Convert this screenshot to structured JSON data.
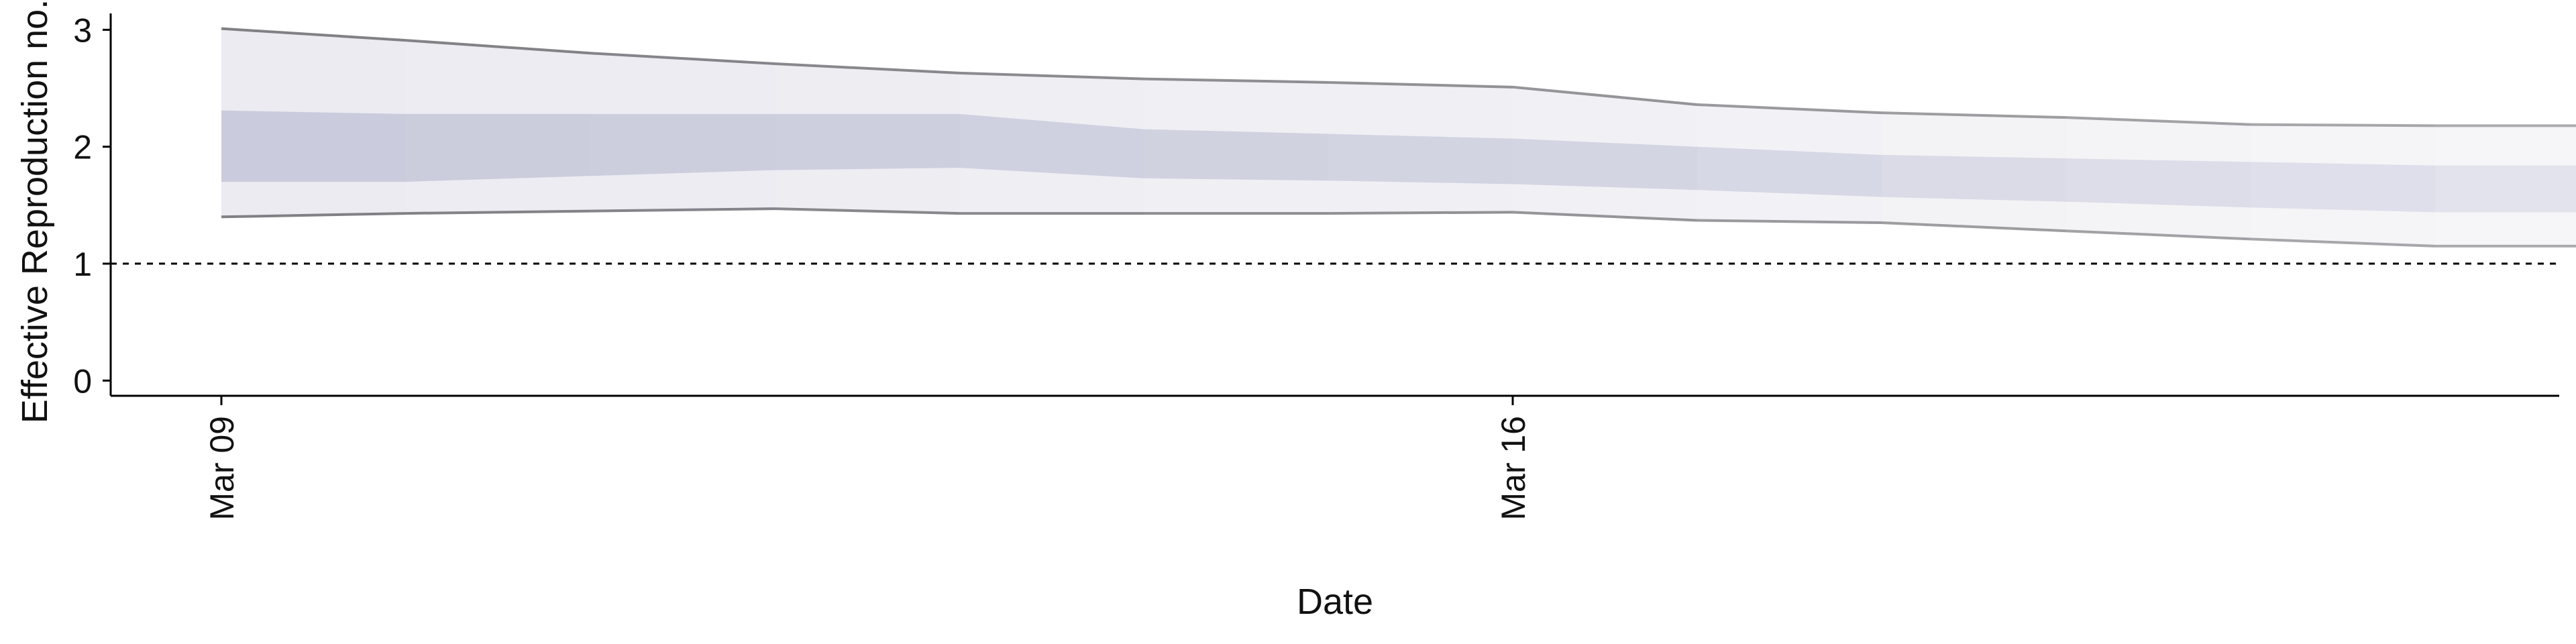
{
  "chart_data": {
    "type": "area",
    "title": "",
    "xlabel": "Date",
    "ylabel": "Effective Reproduction no.",
    "x": [
      "Mar 09",
      "Mar 10",
      "Mar 11",
      "Mar 12",
      "Mar 13",
      "Mar 14",
      "Mar 15",
      "Mar 16",
      "Mar 17",
      "Mar 18",
      "Mar 19",
      "Mar 20",
      "Mar 21",
      "Mar 22"
    ],
    "x_tick_labels": [
      "Mar 09",
      "Mar 16"
    ],
    "y_ticks": [
      0,
      1,
      2,
      3
    ],
    "ylim": [
      -0.13,
      3.14
    ],
    "reference_line": {
      "y": 1,
      "style": "dashed"
    },
    "grid": false,
    "legend": "none",
    "series": [
      {
        "lower_90": [
          1.4,
          1.43,
          1.45,
          1.47,
          1.43,
          1.43,
          1.43,
          1.44,
          1.37,
          1.35,
          1.28,
          1.21,
          1.15,
          1.15
        ]
      },
      {
        "upper_90": [
          3.01,
          2.91,
          2.8,
          2.71,
          2.63,
          2.58,
          2.55,
          2.51,
          2.36,
          2.29,
          2.25,
          2.19,
          2.18,
          2.18
        ]
      },
      {
        "lower_50": [
          1.7,
          1.7,
          1.75,
          1.8,
          1.82,
          1.73,
          1.71,
          1.68,
          1.63,
          1.57,
          1.53,
          1.48,
          1.44,
          1.44
        ]
      },
      {
        "upper_50": [
          2.31,
          2.28,
          2.28,
          2.28,
          2.28,
          2.15,
          2.11,
          2.07,
          2.0,
          1.93,
          1.9,
          1.87,
          1.84,
          1.84
        ]
      }
    ],
    "colors": {
      "band_outer": "#ebebf1",
      "band_inner": "#c9cbdc",
      "bound_line": "#7f7f84",
      "axis": "#000000",
      "reference_line": "#000000"
    }
  }
}
